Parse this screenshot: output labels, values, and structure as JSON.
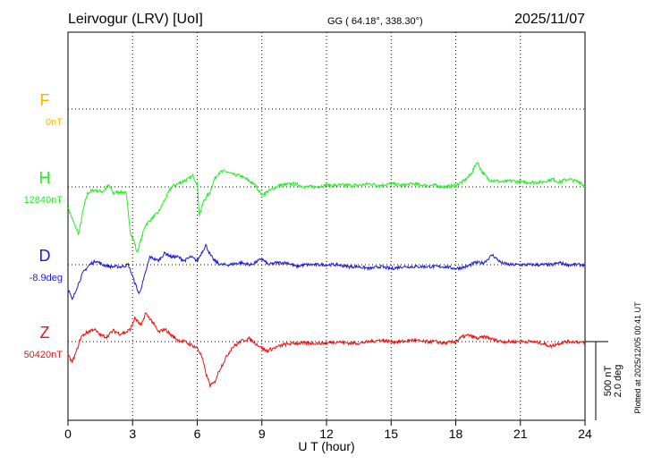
{
  "header": {
    "station": "Leirvogur (LRV)  [UoI]",
    "coords": "GG ( 64.18°, 338.30°)",
    "date": "2025/11/07"
  },
  "side_note": "Plotted at 2025/12/05 00:41 UT",
  "scale_bar": {
    "nT": "500 nT",
    "deg": "2.0 deg"
  },
  "chart_data": {
    "type": "line",
    "xlabel": "U T (hour)",
    "xlim": [
      0,
      24
    ],
    "xticks": [
      "0",
      "3",
      "6",
      "9",
      "12",
      "15",
      "18",
      "21",
      "24"
    ],
    "grid": true,
    "units_scale": {
      "nT_per_bar": 500,
      "deg_per_bar": 2.0
    },
    "components": [
      {
        "name": "F",
        "baseline_label": "0nT",
        "color": "#f5b400",
        "points": []
      },
      {
        "name": "H",
        "baseline_label": "12840nT",
        "color": "#22ee22",
        "points": [
          [
            0,
            -130
          ],
          [
            0.3,
            -240
          ],
          [
            0.5,
            -300
          ],
          [
            0.7,
            -150
          ],
          [
            0.9,
            -40
          ],
          [
            1.2,
            -20
          ],
          [
            1.6,
            -30
          ],
          [
            1.9,
            10
          ],
          [
            2.1,
            -40
          ],
          [
            2.4,
            -30
          ],
          [
            2.7,
            -40
          ],
          [
            2.9,
            -290
          ],
          [
            3.1,
            -360
          ],
          [
            3.2,
            -420
          ],
          [
            3.4,
            -330
          ],
          [
            3.6,
            -240
          ],
          [
            3.9,
            -200
          ],
          [
            4.2,
            -160
          ],
          [
            4.5,
            -80
          ],
          [
            4.8,
            0
          ],
          [
            5.1,
            20
          ],
          [
            5.4,
            40
          ],
          [
            5.6,
            50
          ],
          [
            5.8,
            70
          ],
          [
            6.0,
            20
          ],
          [
            6.1,
            -180
          ],
          [
            6.3,
            -90
          ],
          [
            6.6,
            -30
          ],
          [
            6.8,
            50
          ],
          [
            7.0,
            90
          ],
          [
            7.3,
            100
          ],
          [
            7.6,
            80
          ],
          [
            8.0,
            70
          ],
          [
            8.4,
            40
          ],
          [
            8.7,
            10
          ],
          [
            9.0,
            -50
          ],
          [
            9.4,
            -20
          ],
          [
            9.8,
            10
          ],
          [
            10.5,
            20
          ],
          [
            11.0,
            0
          ],
          [
            11.5,
            0
          ],
          [
            12.0,
            10
          ],
          [
            12.5,
            10
          ],
          [
            13.0,
            10
          ],
          [
            13.5,
            10
          ],
          [
            14.0,
            20
          ],
          [
            14.5,
            10
          ],
          [
            15.0,
            20
          ],
          [
            15.5,
            10
          ],
          [
            16.0,
            20
          ],
          [
            16.5,
            10
          ],
          [
            17.0,
            10
          ],
          [
            17.5,
            0
          ],
          [
            18.0,
            10
          ],
          [
            18.4,
            40
          ],
          [
            18.7,
            80
          ],
          [
            19.0,
            160
          ],
          [
            19.2,
            100
          ],
          [
            19.5,
            50
          ],
          [
            19.8,
            40
          ],
          [
            20.2,
            30
          ],
          [
            20.6,
            40
          ],
          [
            21.0,
            30
          ],
          [
            21.5,
            30
          ],
          [
            22.0,
            30
          ],
          [
            22.5,
            50
          ],
          [
            22.8,
            30
          ],
          [
            23.2,
            50
          ],
          [
            23.5,
            40
          ],
          [
            23.8,
            30
          ],
          [
            24.0,
            0
          ]
        ]
      },
      {
        "name": "D",
        "baseline_label": "-8.9deg",
        "color": "#1a1adb",
        "points": [
          [
            0,
            -0.6
          ],
          [
            0.2,
            -0.9
          ],
          [
            0.4,
            -0.6
          ],
          [
            0.7,
            -0.2
          ],
          [
            1.0,
            0.0
          ],
          [
            1.3,
            0.1
          ],
          [
            1.6,
            0.0
          ],
          [
            2.0,
            -0.05
          ],
          [
            2.5,
            -0.05
          ],
          [
            2.8,
            0.0
          ],
          [
            3.0,
            -0.3
          ],
          [
            3.3,
            -0.75
          ],
          [
            3.5,
            -0.4
          ],
          [
            3.8,
            0.2
          ],
          [
            4.2,
            0.1
          ],
          [
            4.5,
            0.3
          ],
          [
            4.8,
            0.2
          ],
          [
            5.1,
            0.2
          ],
          [
            5.4,
            0.1
          ],
          [
            5.7,
            0.2
          ],
          [
            6.0,
            0.1
          ],
          [
            6.2,
            0.3
          ],
          [
            6.4,
            0.5
          ],
          [
            6.6,
            0.25
          ],
          [
            6.8,
            0.1
          ],
          [
            7.1,
            0.0
          ],
          [
            7.5,
            0.0
          ],
          [
            8.0,
            0.05
          ],
          [
            8.5,
            0.0
          ],
          [
            9.0,
            0.15
          ],
          [
            9.3,
            0.0
          ],
          [
            9.7,
            0.05
          ],
          [
            10.2,
            0.05
          ],
          [
            10.6,
            -0.05
          ],
          [
            11.0,
            0.0
          ],
          [
            11.5,
            0.0
          ],
          [
            12.0,
            0.0
          ],
          [
            12.5,
            0.0
          ],
          [
            13.0,
            -0.05
          ],
          [
            13.5,
            -0.05
          ],
          [
            14.0,
            -0.1
          ],
          [
            14.5,
            -0.05
          ],
          [
            15.0,
            -0.1
          ],
          [
            15.5,
            -0.05
          ],
          [
            16.0,
            -0.05
          ],
          [
            16.5,
            -0.05
          ],
          [
            17.0,
            -0.05
          ],
          [
            17.5,
            -0.05
          ],
          [
            18.0,
            -0.1
          ],
          [
            18.5,
            -0.05
          ],
          [
            18.9,
            0.05
          ],
          [
            19.3,
            0.05
          ],
          [
            19.7,
            0.25
          ],
          [
            20.1,
            0.05
          ],
          [
            20.5,
            0.0
          ],
          [
            21.0,
            0.0
          ],
          [
            21.5,
            0.0
          ],
          [
            22.0,
            0.0
          ],
          [
            22.5,
            0.0
          ],
          [
            22.8,
            0.05
          ],
          [
            23.2,
            0.0
          ],
          [
            23.6,
            0.0
          ],
          [
            24.0,
            0.0
          ]
        ]
      },
      {
        "name": "Z",
        "baseline_label": "50420nT",
        "color": "#ee1111",
        "points": [
          [
            0,
            -90
          ],
          [
            0.2,
            -130
          ],
          [
            0.4,
            -60
          ],
          [
            0.6,
            30
          ],
          [
            0.9,
            60
          ],
          [
            1.2,
            80
          ],
          [
            1.5,
            40
          ],
          [
            1.8,
            30
          ],
          [
            2.1,
            70
          ],
          [
            2.4,
            50
          ],
          [
            2.7,
            60
          ],
          [
            2.9,
            80
          ],
          [
            3.1,
            150
          ],
          [
            3.4,
            100
          ],
          [
            3.6,
            180
          ],
          [
            3.9,
            130
          ],
          [
            4.2,
            60
          ],
          [
            4.5,
            80
          ],
          [
            4.8,
            40
          ],
          [
            5.1,
            10
          ],
          [
            5.4,
            0
          ],
          [
            5.7,
            -20
          ],
          [
            6.0,
            -40
          ],
          [
            6.2,
            -90
          ],
          [
            6.4,
            -200
          ],
          [
            6.6,
            -280
          ],
          [
            6.8,
            -260
          ],
          [
            7.0,
            -190
          ],
          [
            7.3,
            -110
          ],
          [
            7.6,
            -40
          ],
          [
            8.0,
            0
          ],
          [
            8.4,
            20
          ],
          [
            8.8,
            -20
          ],
          [
            9.2,
            -60
          ],
          [
            9.6,
            -40
          ],
          [
            10.0,
            -20
          ],
          [
            10.5,
            -10
          ],
          [
            11.0,
            -10
          ],
          [
            11.5,
            -10
          ],
          [
            12.0,
            -10
          ],
          [
            12.5,
            0
          ],
          [
            13.0,
            -10
          ],
          [
            13.5,
            -10
          ],
          [
            14.0,
            0
          ],
          [
            14.5,
            10
          ],
          [
            15.0,
            0
          ],
          [
            15.5,
            0
          ],
          [
            16.0,
            10
          ],
          [
            16.5,
            0
          ],
          [
            17.0,
            0
          ],
          [
            17.5,
            -10
          ],
          [
            18.0,
            0
          ],
          [
            18.3,
            30
          ],
          [
            18.6,
            40
          ],
          [
            19.0,
            20
          ],
          [
            19.4,
            30
          ],
          [
            19.8,
            10
          ],
          [
            20.2,
            0
          ],
          [
            20.6,
            0
          ],
          [
            21.0,
            0
          ],
          [
            21.5,
            0
          ],
          [
            22.0,
            -10
          ],
          [
            22.4,
            -30
          ],
          [
            22.8,
            -10
          ],
          [
            23.2,
            0
          ],
          [
            23.6,
            0
          ],
          [
            24.0,
            -10
          ]
        ]
      }
    ]
  }
}
